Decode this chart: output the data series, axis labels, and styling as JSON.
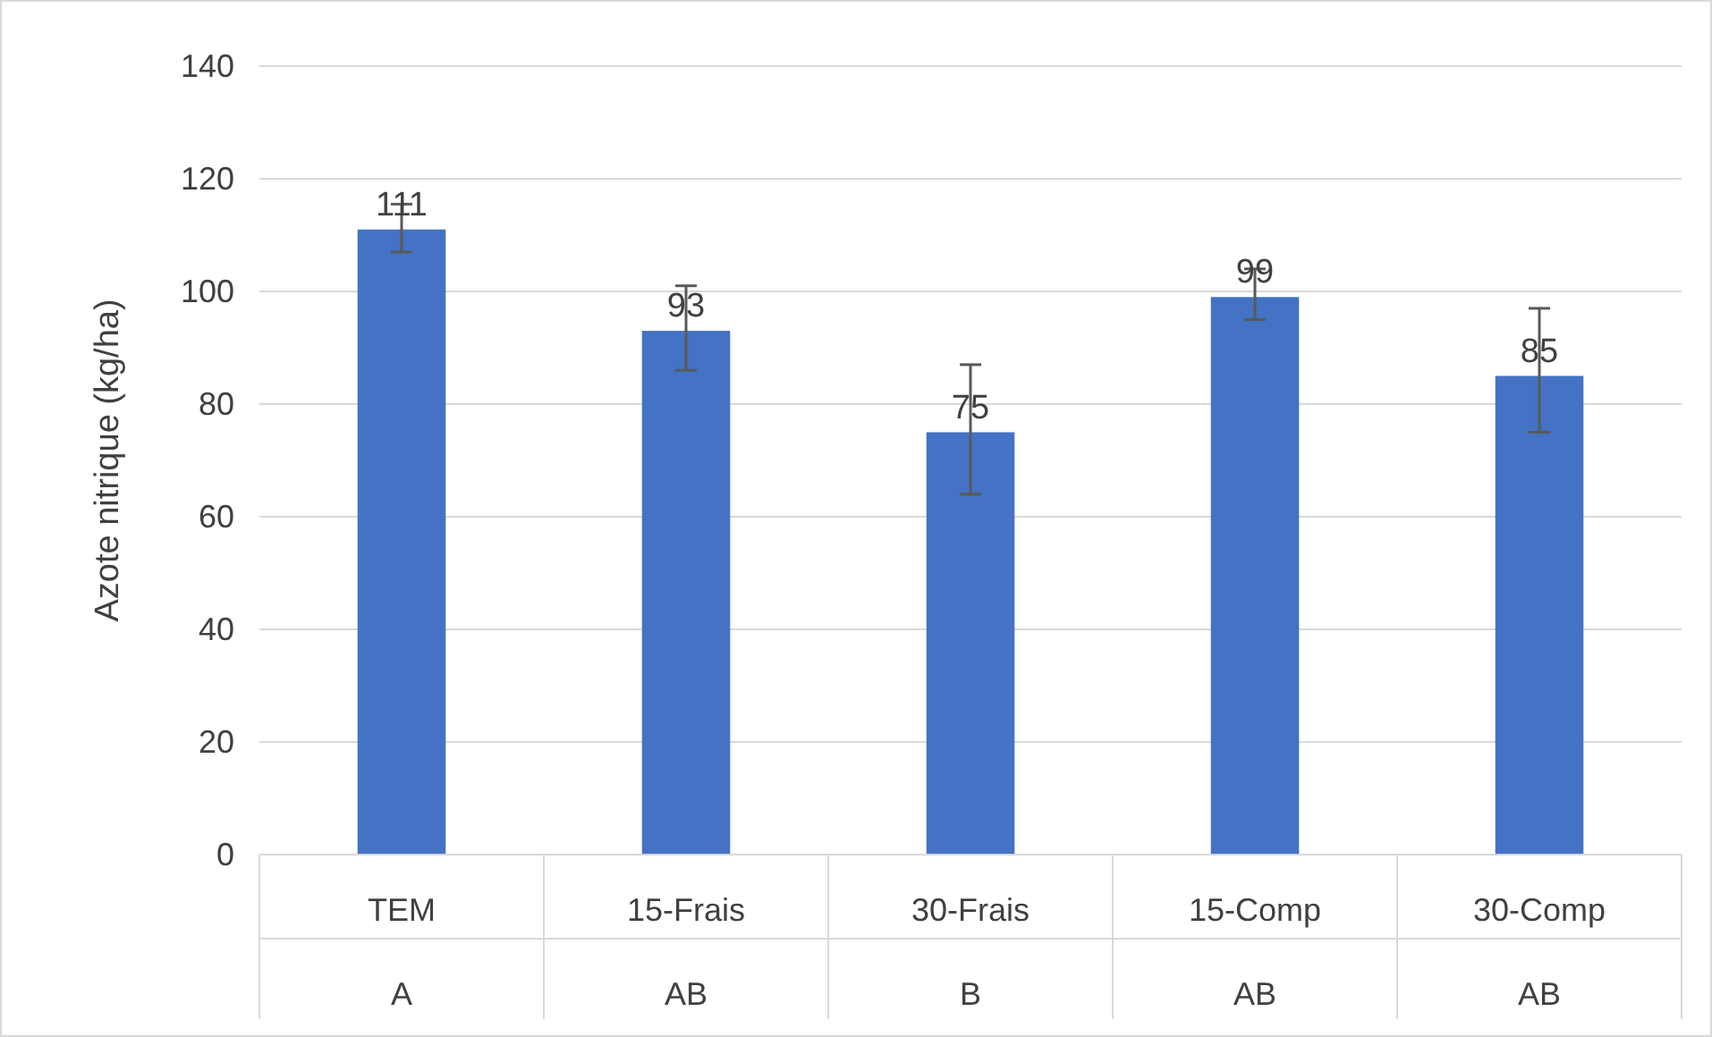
{
  "chart_data": {
    "type": "bar",
    "ylabel": "Azote nitrique (kg/ha)",
    "categories": [
      "TEM",
      "15-Frais",
      "30-Frais",
      "15-Comp",
      "30-Comp"
    ],
    "values": [
      111,
      93,
      75,
      99,
      85
    ],
    "errors": [
      [
        107,
        115.5
      ],
      [
        86,
        101
      ],
      [
        64,
        87
      ],
      [
        95,
        104
      ],
      [
        75,
        97
      ]
    ],
    "color": "#4472c4",
    "data_labels": true,
    "ylim": [
      0,
      140
    ],
    "yticks": [
      0,
      20,
      40,
      60,
      80,
      100,
      120,
      140
    ],
    "grid": "y",
    "annotations": [
      "A",
      "AB",
      "B",
      "AB",
      "AB"
    ]
  }
}
